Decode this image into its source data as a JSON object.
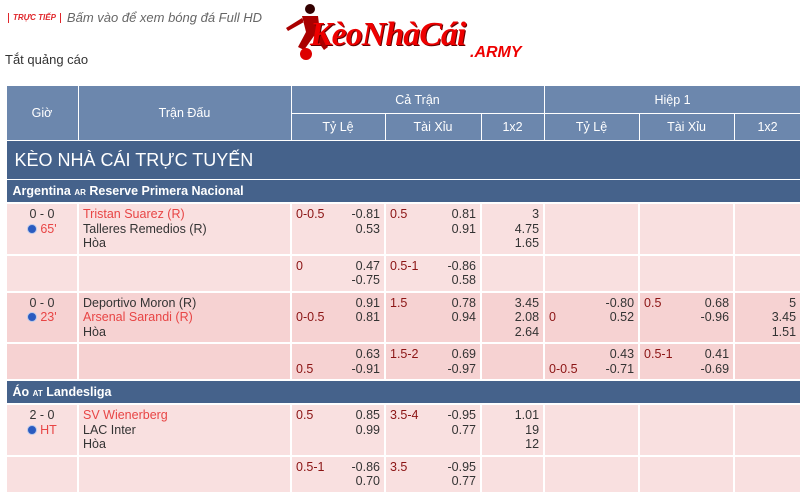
{
  "header": {
    "live_badge": "TRỰC TIẾP",
    "live_text": "Bấm vào để xem bóng đá Full HD",
    "logo_main": "KèoNhàCái",
    "logo_sub": ".ARMY",
    "ads_off": "Tắt quảng cáo"
  },
  "columns": {
    "time": "Giờ",
    "match": "Trận Đấu",
    "full": "Cả Trận",
    "half": "Hiệp 1",
    "hdp": "Tỷ Lệ",
    "ou": "Tài Xỉu",
    "x12": "1x2"
  },
  "section_title": "KÈO NHÀ CÁI TRỰC TUYẾN",
  "colors": {
    "header": "#6c87ad",
    "title": "#45628b",
    "favorite": "#e84545",
    "handicap": "#8b1414",
    "row": "#f9e0e0"
  },
  "leagues": [
    {
      "country": "Argentina",
      "code": "AR",
      "name": "Reserve Primera Nacional",
      "matches": [
        {
          "score": "0 - 0",
          "time": "65'",
          "home": "Tristan Suarez (R)",
          "away": "Talleres Remedios (R)",
          "draw": "Hòa",
          "favorite": "home",
          "shade": "m1",
          "lines": [
            {
              "full": {
                "hdp": "0-0.5",
                "hdp_row": 0,
                "hdp_odds": [
                  "-0.81",
                  "0.53"
                ],
                "ou": "0.5",
                "ou_odds": [
                  "0.81",
                  "0.91"
                ],
                "x12": [
                  "3",
                  "4.75",
                  "1.65"
                ]
              },
              "half": null
            },
            {
              "full": {
                "hdp": "0",
                "hdp_row": 0,
                "hdp_odds": [
                  "0.47",
                  "-0.75"
                ],
                "ou": "0.5-1",
                "ou_odds": [
                  "-0.86",
                  "0.58"
                ],
                "x12": []
              },
              "half": null
            }
          ]
        },
        {
          "score": "0 - 0",
          "time": "23'",
          "home": "Deportivo Moron (R)",
          "away": "Arsenal Sarandi (R)",
          "draw": "Hòa",
          "favorite": "away",
          "shade": "m2",
          "lines": [
            {
              "full": {
                "hdp": "0-0.5",
                "hdp_row": 1,
                "hdp_odds": [
                  "0.91",
                  "0.81"
                ],
                "ou": "1.5",
                "ou_odds": [
                  "0.78",
                  "0.94"
                ],
                "x12": [
                  "3.45",
                  "2.08",
                  "2.64"
                ]
              },
              "half": {
                "hdp": "0",
                "hdp_row": 1,
                "hdp_odds": [
                  "-0.80",
                  "0.52"
                ],
                "ou": "0.5",
                "ou_odds": [
                  "0.68",
                  "-0.96"
                ],
                "x12": [
                  "5",
                  "3.45",
                  "1.51"
                ]
              }
            },
            {
              "full": {
                "hdp": "0.5",
                "hdp_row": 1,
                "hdp_odds": [
                  "0.63",
                  "-0.91"
                ],
                "ou": "1.5-2",
                "ou_odds": [
                  "0.69",
                  "-0.97"
                ],
                "x12": []
              },
              "half": {
                "hdp": "0-0.5",
                "hdp_row": 1,
                "hdp_odds": [
                  "0.43",
                  "-0.71"
                ],
                "ou": "0.5-1",
                "ou_odds": [
                  "0.41",
                  "-0.69"
                ],
                "x12": []
              }
            }
          ]
        }
      ]
    },
    {
      "country": "Áo",
      "code": "AT",
      "name": "Landesliga",
      "matches": [
        {
          "score": "2 - 0",
          "time": "HT",
          "home": "SV Wienerberg",
          "away": "LAC Inter",
          "draw": "Hòa",
          "favorite": "home",
          "shade": "m1",
          "lines": [
            {
              "full": {
                "hdp": "0.5",
                "hdp_row": 0,
                "hdp_odds": [
                  "0.85",
                  "0.99"
                ],
                "ou": "3.5-4",
                "ou_odds": [
                  "-0.95",
                  "0.77"
                ],
                "x12": [
                  "1.01",
                  "19",
                  "12"
                ]
              },
              "half": null
            },
            {
              "full": {
                "hdp": "0.5-1",
                "hdp_row": 0,
                "hdp_odds": [
                  "-0.86",
                  "0.70"
                ],
                "ou": "3.5",
                "ou_odds": [
                  "-0.95",
                  "0.77"
                ],
                "x12": []
              },
              "half": null
            }
          ]
        }
      ]
    }
  ]
}
